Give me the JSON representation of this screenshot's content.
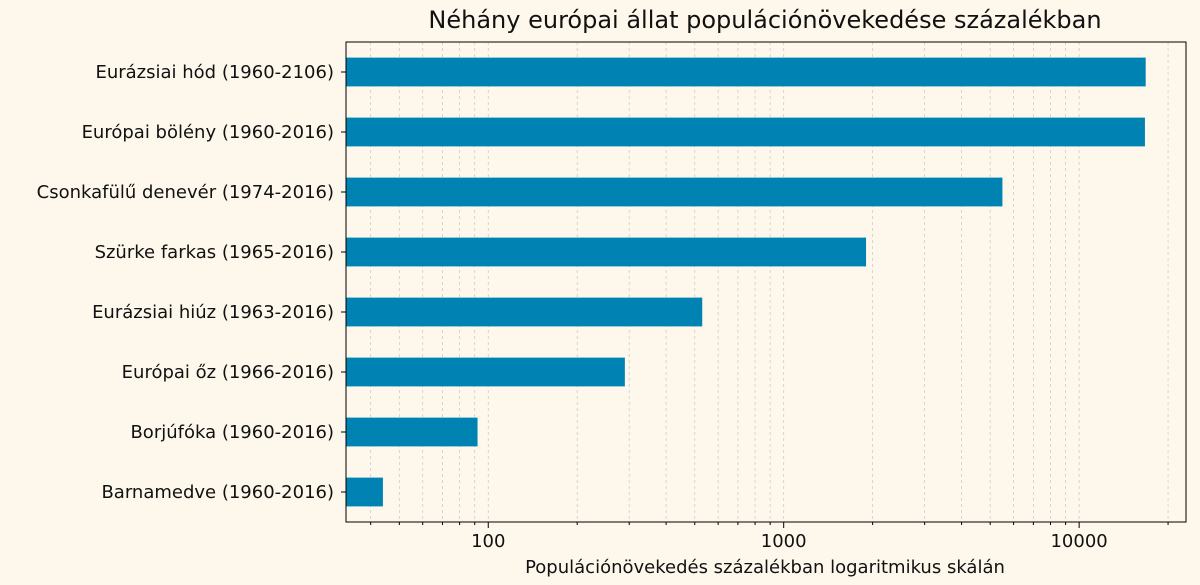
{
  "chart_data": {
    "type": "bar",
    "orientation": "horizontal",
    "title": "Néhány európai állat populációnövekedése százalékban",
    "xlabel": "Populációnövekedés százalékban logaritmikus skálán",
    "ylabel": "",
    "x_scale": "log",
    "xlim": [
      33,
      23000
    ],
    "x_ticks": [
      {
        "value": 100,
        "label": "100"
      },
      {
        "value": 1000,
        "label": "1000"
      },
      {
        "value": 10000,
        "label": "10000"
      }
    ],
    "grid": "vertical-dashed-major-and-minor",
    "categories": [
      "Eurázsiai hód (1960-2106)",
      "Európai bölény (1960-2016)",
      "Csonkafülű denevér (1974-2016)",
      "Szürke farkas (1965-2016)",
      "Eurázsiai hiúz (1963-2016)",
      "Európai őz (1966-2016)",
      "Borjúfóka (1960-2016)",
      "Barnamedve (1960-2016)"
    ],
    "values": [
      16800,
      16700,
      5500,
      1900,
      530,
      290,
      92,
      44
    ],
    "colors": {
      "bar": "#0083b3",
      "background": "#fef8ec",
      "grid": "#cccccc"
    }
  }
}
